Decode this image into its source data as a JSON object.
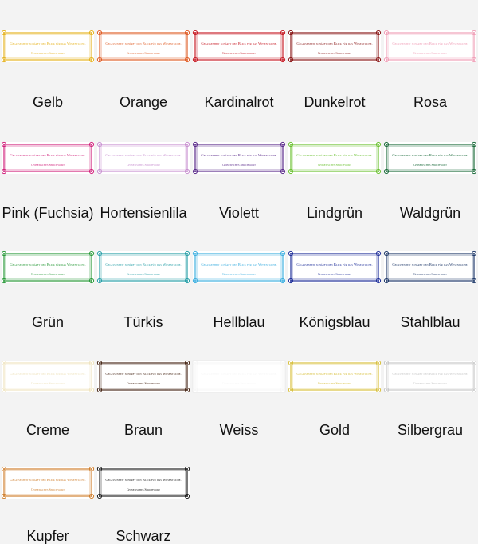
{
  "swatch_text": {
    "motto": "Gelassenheit schärft den Blick für das Wesentliche.",
    "source": "Chinesisches Sprichwort"
  },
  "colors": [
    {
      "name": "Gelb",
      "color": "#e6b422"
    },
    {
      "name": "Orange",
      "color": "#e0602a"
    },
    {
      "name": "Kardinalrot",
      "color": "#c8202a"
    },
    {
      "name": "Dunkelrot",
      "color": "#8b1a1a"
    },
    {
      "name": "Rosa",
      "color": "#f0a0b8"
    },
    {
      "name": "Pink (Fuchsia)",
      "color": "#d0207a"
    },
    {
      "name": "Hortensienlila",
      "color": "#c890d0"
    },
    {
      "name": "Violett",
      "color": "#5a2a8a"
    },
    {
      "name": "Lindgrün",
      "color": "#6ac030"
    },
    {
      "name": "Waldgrün",
      "color": "#1a6a3a"
    },
    {
      "name": "Grün",
      "color": "#2a9a3a"
    },
    {
      "name": "Türkis",
      "color": "#2aa0a8"
    },
    {
      "name": "Hellblau",
      "color": "#40b0e0"
    },
    {
      "name": "Königsblau",
      "color": "#20309a"
    },
    {
      "name": "Stahlblau",
      "color": "#203a6a"
    },
    {
      "name": "Creme",
      "color": "#efe4c0"
    },
    {
      "name": "Braun",
      "color": "#4a2a1a"
    },
    {
      "name": "Weiss",
      "color": "#f6f6f6"
    },
    {
      "name": "Gold",
      "color": "#d8c040"
    },
    {
      "name": "Silbergrau",
      "color": "#c8c8c8"
    },
    {
      "name": "Kupfer",
      "color": "#d08030"
    },
    {
      "name": "Schwarz",
      "color": "#222222"
    }
  ]
}
